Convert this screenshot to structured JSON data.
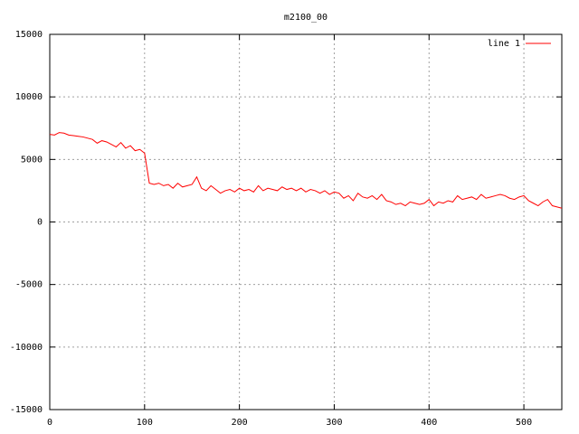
{
  "chart_data": {
    "type": "line",
    "title": "m2100_00",
    "x": [
      0,
      5,
      10,
      15,
      20,
      25,
      30,
      35,
      40,
      45,
      50,
      55,
      60,
      65,
      70,
      75,
      80,
      85,
      90,
      95,
      100,
      105,
      110,
      115,
      120,
      125,
      130,
      135,
      140,
      145,
      150,
      155,
      160,
      165,
      170,
      175,
      180,
      185,
      190,
      195,
      200,
      205,
      210,
      215,
      220,
      225,
      230,
      235,
      240,
      245,
      250,
      255,
      260,
      265,
      270,
      275,
      280,
      285,
      290,
      295,
      300,
      305,
      310,
      315,
      320,
      325,
      330,
      335,
      340,
      345,
      350,
      355,
      360,
      365,
      370,
      375,
      380,
      385,
      390,
      395,
      400,
      405,
      410,
      415,
      420,
      425,
      430,
      435,
      440,
      445,
      450,
      455,
      460,
      465,
      470,
      475,
      480,
      485,
      490,
      495,
      500,
      505,
      510,
      515,
      520,
      525,
      530,
      535,
      540
    ],
    "series": [
      {
        "name": "line 1",
        "color": "#ff0000",
        "values": [
          7000,
          6950,
          7150,
          7100,
          6950,
          6900,
          6850,
          6800,
          6700,
          6600,
          6300,
          6500,
          6400,
          6200,
          6000,
          6350,
          5900,
          6100,
          5700,
          5800,
          5500,
          3100,
          3000,
          3100,
          2900,
          3000,
          2700,
          3100,
          2800,
          2900,
          3000,
          3600,
          2700,
          2500,
          2900,
          2600,
          2300,
          2500,
          2600,
          2400,
          2700,
          2500,
          2600,
          2400,
          2900,
          2500,
          2700,
          2600,
          2500,
          2800,
          2600,
          2700,
          2500,
          2700,
          2400,
          2600,
          2500,
          2300,
          2500,
          2200,
          2400,
          2300,
          1900,
          2100,
          1700,
          2300,
          2000,
          1900,
          2100,
          1800,
          2200,
          1700,
          1600,
          1400,
          1500,
          1300,
          1600,
          1500,
          1400,
          1500,
          1800,
          1300,
          1600,
          1500,
          1700,
          1600,
          2100,
          1800,
          1900,
          2000,
          1800,
          2200,
          1900,
          2000,
          2100,
          2200,
          2100,
          1900,
          1800,
          2000,
          2100,
          1700,
          1500,
          1300,
          1600,
          1800,
          1300,
          1200,
          1100
        ]
      }
    ],
    "xlim": [
      0,
      540
    ],
    "xticks": [
      0,
      100,
      200,
      300,
      400,
      500
    ],
    "ylim": [
      -15000,
      15000
    ],
    "yticks": [
      -15000,
      -10000,
      -5000,
      0,
      5000,
      10000,
      15000
    ],
    "grid": true,
    "legend": "top-right"
  }
}
